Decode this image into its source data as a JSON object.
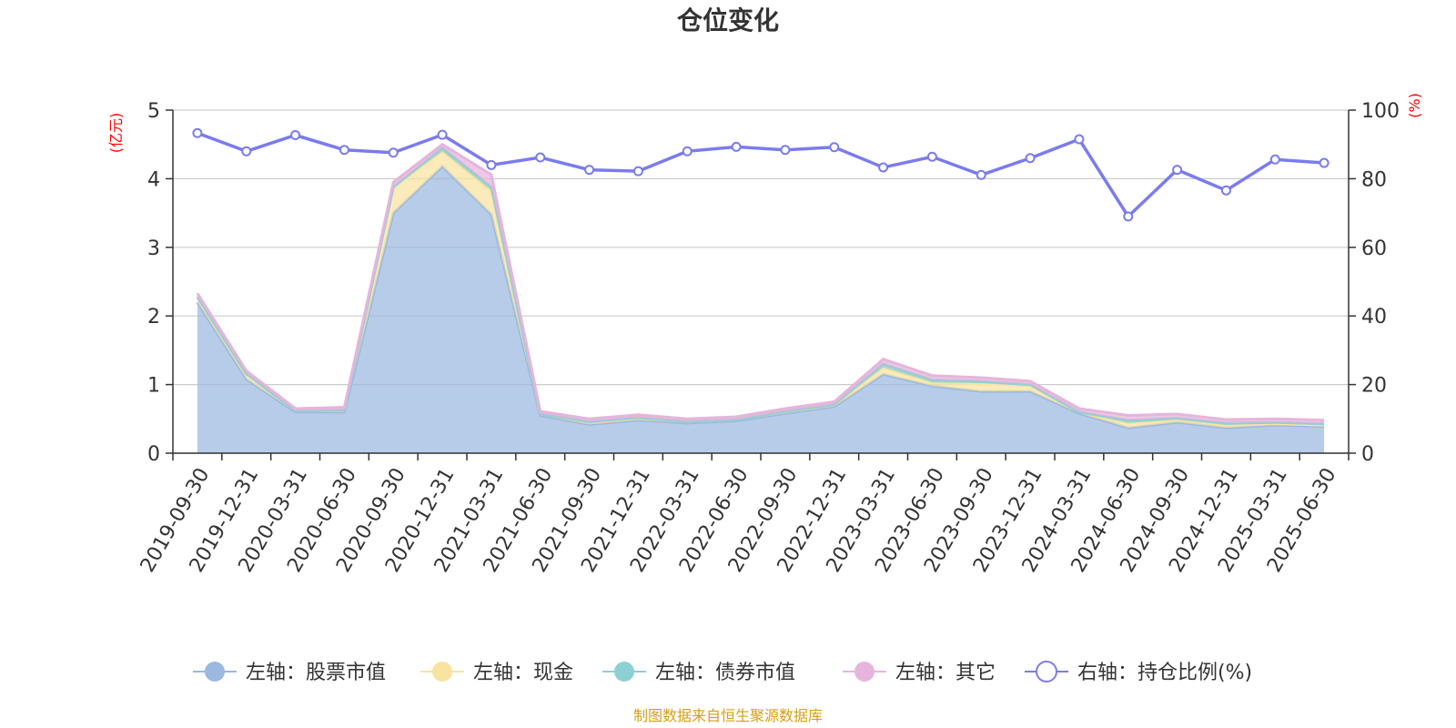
{
  "chart_data": {
    "type": "area",
    "title": "仓位变化",
    "left_axis": {
      "unit_label": "(亿元)",
      "ylim": [
        0,
        5
      ],
      "ticks": [
        0,
        1,
        2,
        3,
        4,
        5
      ]
    },
    "right_axis": {
      "unit_label": "(%)",
      "ylim": [
        0,
        100
      ],
      "ticks": [
        0,
        20,
        40,
        60,
        80,
        100
      ]
    },
    "categories": [
      "2019-09-30",
      "2019-12-31",
      "2020-03-31",
      "2020-06-30",
      "2020-09-30",
      "2020-12-31",
      "2021-03-31",
      "2021-06-30",
      "2021-09-30",
      "2021-12-31",
      "2022-03-31",
      "2022-06-30",
      "2022-09-30",
      "2022-12-31",
      "2023-03-31",
      "2023-06-30",
      "2023-09-30",
      "2023-12-31",
      "2024-03-31",
      "2024-06-30",
      "2024-09-30",
      "2024-12-31",
      "2025-03-31",
      "2025-06-30"
    ],
    "series": [
      {
        "name": "左轴：股票市值",
        "axis": "left",
        "type": "stacked-area",
        "color": "#9bb8e0",
        "values": [
          2.2,
          1.08,
          0.6,
          0.6,
          3.5,
          4.18,
          3.48,
          0.55,
          0.42,
          0.48,
          0.44,
          0.47,
          0.58,
          0.68,
          1.15,
          0.98,
          0.9,
          0.9,
          0.58,
          0.37,
          0.45,
          0.37,
          0.41,
          0.39
        ]
      },
      {
        "name": "左轴：现金",
        "axis": "left",
        "type": "stacked-area",
        "color": "#f9e3a0",
        "values": [
          0.08,
          0.08,
          0.02,
          0.03,
          0.38,
          0.22,
          0.35,
          0.02,
          0.04,
          0.04,
          0.02,
          0.02,
          0.03,
          0.03,
          0.1,
          0.05,
          0.12,
          0.08,
          0.02,
          0.07,
          0.04,
          0.04,
          0.02,
          0.02
        ]
      },
      {
        "name": "左轴：债券市值",
        "axis": "left",
        "type": "stacked-area",
        "color": "#8dd0d4",
        "values": [
          0.0,
          0.0,
          0.0,
          0.0,
          0.0,
          0.05,
          0.05,
          0.0,
          0.0,
          0.0,
          0.0,
          0.0,
          0.0,
          0.0,
          0.05,
          0.04,
          0.03,
          0.02,
          0.0,
          0.04,
          0.02,
          0.03,
          0.02,
          0.02
        ]
      },
      {
        "name": "左轴：其它",
        "axis": "left",
        "type": "stacked-area",
        "color": "#e6b4dc",
        "values": [
          0.05,
          0.04,
          0.03,
          0.04,
          0.07,
          0.05,
          0.18,
          0.04,
          0.04,
          0.04,
          0.04,
          0.04,
          0.04,
          0.04,
          0.07,
          0.06,
          0.05,
          0.05,
          0.05,
          0.07,
          0.06,
          0.05,
          0.05,
          0.05
        ]
      },
      {
        "name": "右轴：持仓比例(%)",
        "axis": "right",
        "type": "line",
        "color": "#7b7bee",
        "values": [
          93.3,
          88.0,
          92.7,
          88.4,
          87.6,
          92.8,
          84.0,
          86.2,
          82.6,
          82.2,
          88.0,
          89.3,
          88.4,
          89.2,
          83.3,
          86.4,
          81.1,
          86.0,
          91.5,
          69.0,
          82.6,
          76.6,
          85.6,
          84.6
        ]
      }
    ],
    "grid": true,
    "legend_position": "bottom"
  },
  "source_text": "制图数据来自恒生聚源数据库"
}
